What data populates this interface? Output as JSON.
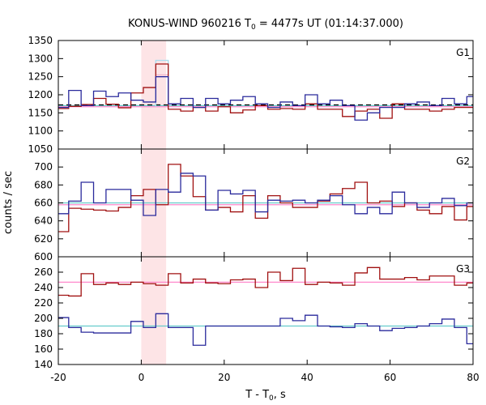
{
  "chart_data": {
    "type": "line",
    "title_main": "KONUS-WIND 960216 T",
    "title_sub": "0",
    "title_rest": " = 4477s UT (01:14:37.000)",
    "xlabel_main": "T - T",
    "xlabel_sub": "0",
    "xlabel_rest": ", s",
    "ylabel": "counts / sec",
    "xlim": [
      -20,
      80
    ],
    "xticks": [
      -20,
      0,
      20,
      40,
      60,
      80
    ],
    "highlight_interval": [
      0,
      6
    ],
    "colors": {
      "red": "#a01010",
      "blue": "#2a2a9c",
      "pink": "#ff88cc",
      "cyan": "#66cccc",
      "shade": "#fde4e6",
      "pale_cyan": "#aaddee",
      "pale_pink": "#f3b8cc"
    },
    "bin_edges": [
      -20.5,
      -17.5,
      -14.5,
      -11.5,
      -8.5,
      -5.5,
      -2.5,
      0.5,
      3.5,
      6.5,
      9.5,
      12.5,
      15.5,
      18.5,
      21.5,
      24.5,
      27.5,
      30.5,
      33.5,
      36.5,
      39.5,
      42.5,
      45.5,
      48.5,
      51.5,
      54.5,
      57.5,
      60.5,
      63.5,
      66.5,
      69.5,
      72.5,
      75.5,
      78.5,
      81.5
    ],
    "panels": [
      {
        "label": "G1",
        "ylim": [
          1050,
          1350
        ],
        "yticks": [
          1050,
          1100,
          1150,
          1200,
          1250,
          1300,
          1350
        ],
        "series": [
          {
            "color": "red",
            "values": [
              1162,
              1168,
              1173,
              1190,
              1174,
              1164,
              1205,
              1220,
              1285,
              1160,
              1155,
              1165,
              1155,
              1167,
              1150,
              1158,
              1170,
              1160,
              1162,
              1160,
              1175,
              1160,
              1160,
              1140,
              1155,
              1160,
              1135,
              1175,
              1160,
              1160,
              1155,
              1160,
              1165,
              1165
            ]
          },
          {
            "color": "blue",
            "values": [
              1165,
              1212,
              1170,
              1210,
              1195,
              1205,
              1185,
              1180,
              1250,
              1175,
              1190,
              1165,
              1190,
              1175,
              1185,
              1195,
              1175,
              1165,
              1180,
              1170,
              1200,
              1175,
              1185,
              1170,
              1130,
              1150,
              1165,
              1165,
              1175,
              1180,
              1170,
              1190,
              1175,
              1195
            ]
          }
        ],
        "background": [
          {
            "color": "pink",
            "dashed": false,
            "value": 1167
          },
          {
            "color": "cyan",
            "dashed": false,
            "value": 1170
          },
          {
            "color": "black",
            "dashed": true,
            "value": 1172
          }
        ],
        "burst_overlays": [
          {
            "color": "pale_pink",
            "x": [
              3.5,
              6.5
            ],
            "value": 1255
          },
          {
            "color": "pale_cyan",
            "x": [
              3.5,
              6.5
            ],
            "value": 1295
          }
        ]
      },
      {
        "label": "G2",
        "ylim": [
          600,
          720
        ],
        "yticks": [
          600,
          620,
          640,
          660,
          680,
          700
        ],
        "series": [
          {
            "color": "red",
            "values": [
              628,
              654,
              653,
              652,
              651,
              655,
              668,
              675,
              658,
              703,
              690,
              667,
              652,
              655,
              650,
              668,
              643,
              668,
              660,
              655,
              655,
              662,
              670,
              676,
              683,
              660,
              662,
              656,
              660,
              652,
              648,
              656,
              641,
              656
            ]
          },
          {
            "color": "blue",
            "values": [
              648,
              662,
              683,
              660,
              675,
              675,
              663,
              646,
              675,
              672,
              693,
              690,
              652,
              674,
              670,
              674,
              650,
              663,
              662,
              663,
              660,
              663,
              668,
              658,
              648,
              655,
              648,
              672,
              660,
              655,
              660,
              665,
              657,
              660
            ]
          }
        ],
        "background": [
          {
            "color": "pink",
            "dashed": false,
            "value": 658
          },
          {
            "color": "cyan",
            "dashed": false,
            "value": 660
          }
        ],
        "burst_overlays": []
      },
      {
        "label": "G3",
        "ylim": [
          140,
          280
        ],
        "yticks": [
          140,
          160,
          180,
          200,
          220,
          240,
          260
        ],
        "series": [
          {
            "color": "red",
            "values": [
              230,
              229,
              258,
              244,
              246,
              244,
              247,
              245,
              243,
              258,
              246,
              251,
              246,
              245,
              250,
              251,
              240,
              260,
              249,
              265,
              244,
              247,
              246,
              243,
              259,
              266,
              251,
              251,
              253,
              250,
              255,
              255,
              243,
              246
            ]
          },
          {
            "color": "blue",
            "values": [
              201,
              188,
              182,
              181,
              181,
              181,
              196,
              188,
              206,
              188,
              188,
              165,
              190,
              190,
              190,
              190,
              190,
              190,
              200,
              197,
              204,
              190,
              189,
              188,
              193,
              190,
              184,
              187,
              188,
              190,
              193,
              199,
              188,
              167
            ]
          }
        ],
        "background": [
          {
            "color": "pink",
            "dashed": false,
            "value": 247
          },
          {
            "color": "cyan",
            "dashed": false,
            "value": 190
          }
        ],
        "burst_overlays": []
      }
    ]
  }
}
